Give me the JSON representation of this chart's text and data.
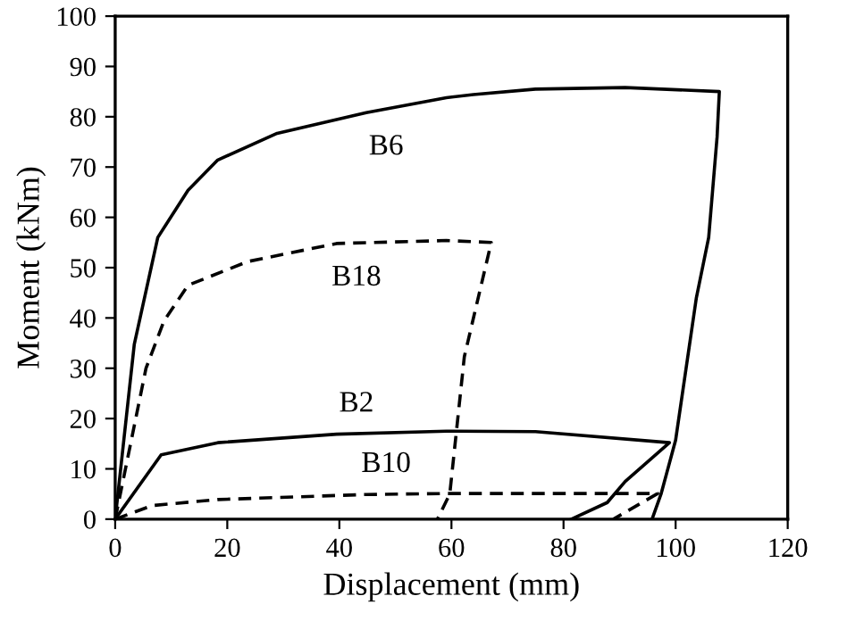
{
  "chart_data": {
    "type": "line",
    "xlabel": "Displacement (mm)",
    "ylabel": "Moment (kNm)",
    "xlim": [
      0,
      120
    ],
    "xticks": [
      0,
      20,
      40,
      60,
      80,
      100,
      120
    ],
    "ylim": [
      0,
      100
    ],
    "yticks": [
      0,
      10,
      20,
      30,
      40,
      50,
      60,
      70,
      80,
      90,
      100
    ],
    "grid": false,
    "legend": false,
    "marker": "none",
    "series": [
      {
        "name": "B6",
        "color": "#000000",
        "line_style": "solid",
        "x": [
          0,
          3.4,
          7.6,
          13,
          18.3,
          28.9,
          44.8,
          59.1,
          63.9,
          75,
          91,
          107.8,
          107.4,
          105.9,
          103.7,
          100,
          97.4,
          95.8
        ],
        "values": [
          0,
          34.7,
          56,
          65.4,
          71.4,
          76.7,
          80.8,
          83.8,
          84.4,
          85.5,
          85.8,
          85,
          76,
          56,
          44,
          15.7,
          5,
          0
        ]
      },
      {
        "name": "B18",
        "color": "#000000",
        "line_style": "dashed",
        "x": [
          0,
          5.5,
          8.7,
          13,
          23.6,
          39.5,
          59.1,
          67.1,
          62.3,
          59.7,
          57.5
        ],
        "values": [
          0,
          30,
          39.4,
          46.5,
          51.2,
          54.8,
          55.4,
          55,
          32.3,
          5,
          0
        ]
      },
      {
        "name": "B2",
        "color": "#000000",
        "line_style": "solid",
        "x": [
          0,
          8.2,
          18.3,
          39.5,
          59.1,
          75,
          98.9,
          91,
          87.8,
          81.4
        ],
        "values": [
          0,
          12.8,
          15.2,
          16.9,
          17.5,
          17.4,
          15.2,
          7.5,
          3.3,
          0
        ]
      },
      {
        "name": "B10",
        "color": "#000000",
        "line_style": "dashed",
        "x": [
          0,
          6.6,
          18.3,
          44.8,
          59.1,
          96.8,
          94,
          88.9
        ],
        "values": [
          0,
          2.7,
          3.9,
          4.9,
          5.1,
          5.1,
          3.3,
          0
        ]
      }
    ]
  }
}
